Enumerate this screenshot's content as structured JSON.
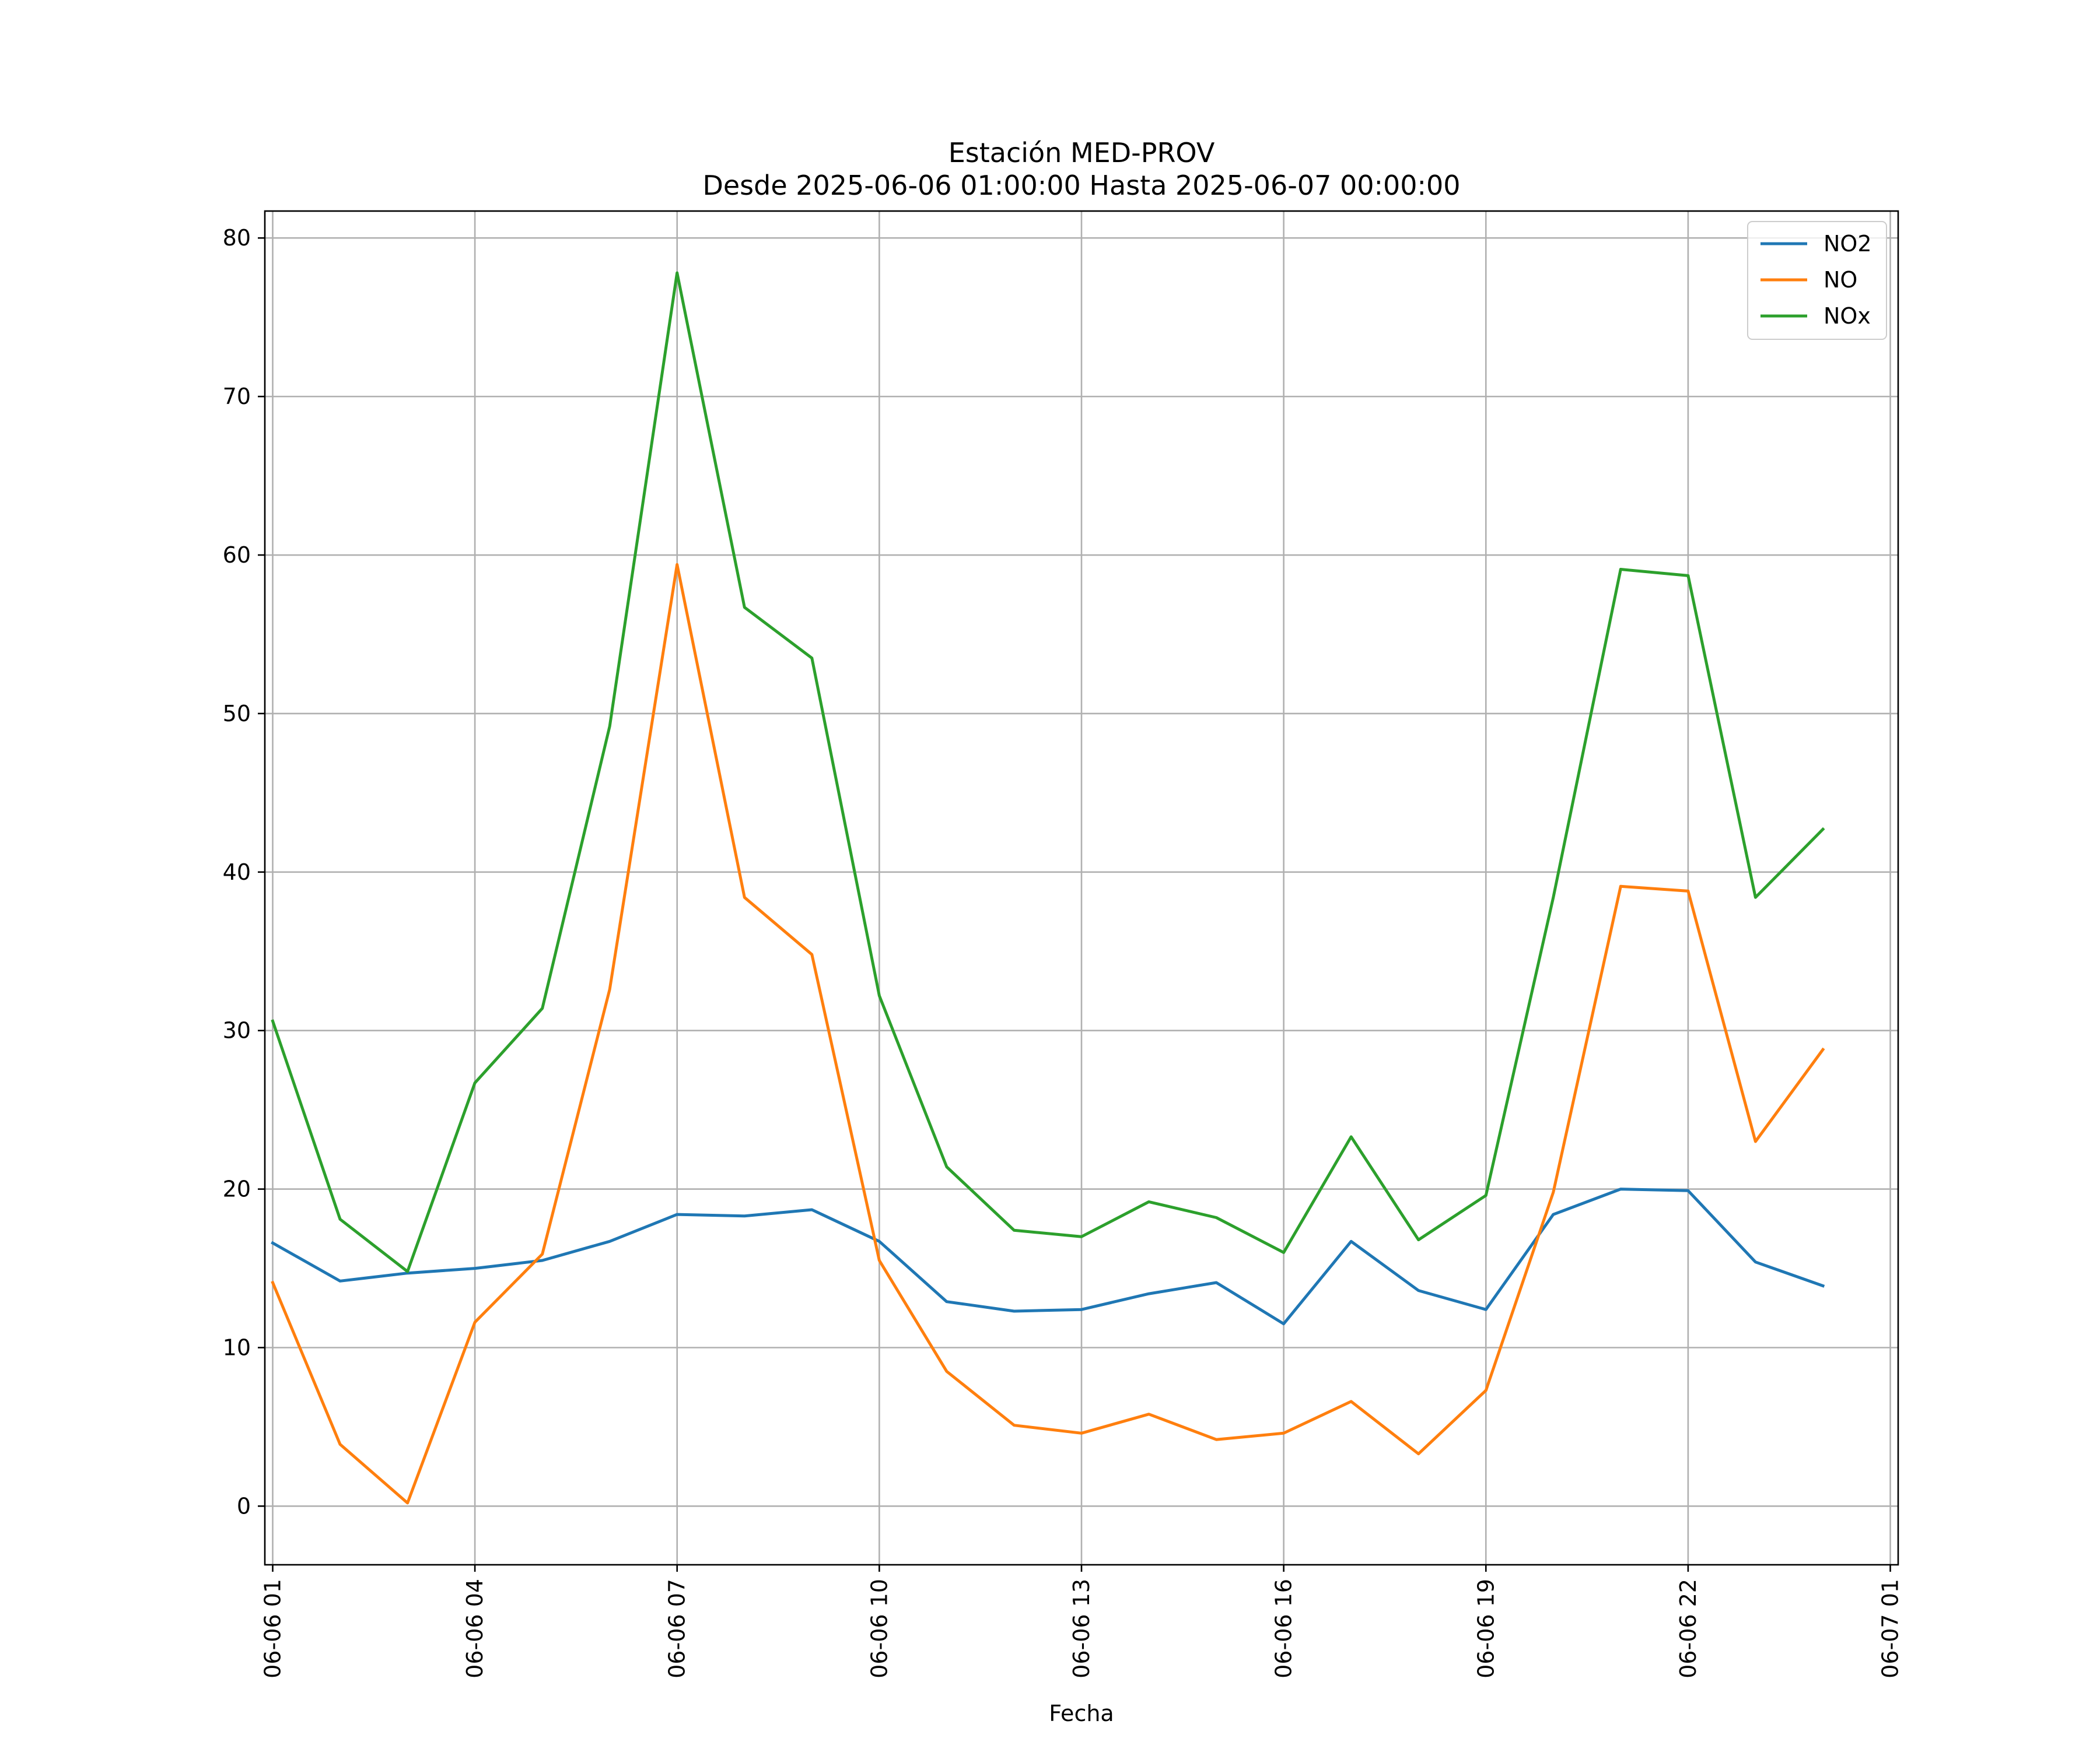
{
  "chart_data": {
    "type": "line",
    "title": "Estación MED-PROV",
    "subtitle": "Desde 2025-06-06 01:00:00 Hasta 2025-06-07 00:00:00",
    "xlabel": "Fecha",
    "ylabel": "",
    "x": [
      "2025-06-06 01:00",
      "2025-06-06 02:00",
      "2025-06-06 03:00",
      "2025-06-06 04:00",
      "2025-06-06 05:00",
      "2025-06-06 06:00",
      "2025-06-06 07:00",
      "2025-06-06 08:00",
      "2025-06-06 09:00",
      "2025-06-06 10:00",
      "2025-06-06 11:00",
      "2025-06-06 12:00",
      "2025-06-06 13:00",
      "2025-06-06 14:00",
      "2025-06-06 15:00",
      "2025-06-06 16:00",
      "2025-06-06 17:00",
      "2025-06-06 18:00",
      "2025-06-06 19:00",
      "2025-06-06 20:00",
      "2025-06-06 21:00",
      "2025-06-06 22:00",
      "2025-06-06 23:00",
      "2025-06-07 00:00"
    ],
    "xlim": [
      "2025-06-06 00:53",
      "2025-06-07 01:07"
    ],
    "ylim": [
      -3.7,
      81.7
    ],
    "xticks": [
      "2025-06-06 01:00",
      "2025-06-06 04:00",
      "2025-06-06 07:00",
      "2025-06-06 10:00",
      "2025-06-06 13:00",
      "2025-06-06 16:00",
      "2025-06-06 19:00",
      "2025-06-06 22:00",
      "2025-06-07 01:00"
    ],
    "xtick_labels": [
      "06-06 01",
      "06-06 04",
      "06-06 07",
      "06-06 10",
      "06-06 13",
      "06-06 16",
      "06-06 19",
      "06-06 22",
      "06-07 01"
    ],
    "yticks": [
      0,
      10,
      20,
      30,
      40,
      50,
      60,
      70,
      80
    ],
    "ytick_labels": [
      "0",
      "10",
      "20",
      "30",
      "40",
      "50",
      "60",
      "70",
      "80"
    ],
    "grid": true,
    "legend": "top-right",
    "series": [
      {
        "name": "NO2",
        "color": "#1f77b4",
        "values": [
          16.6,
          14.2,
          14.7,
          15.0,
          15.5,
          16.7,
          18.4,
          18.3,
          18.7,
          16.7,
          12.9,
          12.3,
          12.4,
          13.4,
          14.1,
          11.5,
          16.7,
          13.6,
          12.4,
          18.4,
          20.0,
          19.9,
          15.4,
          13.9
        ]
      },
      {
        "name": "NO",
        "color": "#ff7f0e",
        "values": [
          14.1,
          3.9,
          0.2,
          11.6,
          15.9,
          32.6,
          59.4,
          38.4,
          34.8,
          15.5,
          8.5,
          5.1,
          4.6,
          5.8,
          4.2,
          4.6,
          6.6,
          3.3,
          7.3,
          19.8,
          39.1,
          38.8,
          23.0,
          28.8
        ]
      },
      {
        "name": "NOx",
        "color": "#2ca02c",
        "values": [
          30.6,
          18.1,
          14.8,
          26.7,
          31.4,
          49.2,
          77.8,
          56.7,
          53.5,
          32.2,
          21.4,
          17.4,
          17.0,
          19.2,
          18.2,
          16.0,
          23.3,
          16.8,
          19.6,
          38.4,
          59.1,
          58.7,
          38.4,
          42.7
        ]
      }
    ]
  }
}
